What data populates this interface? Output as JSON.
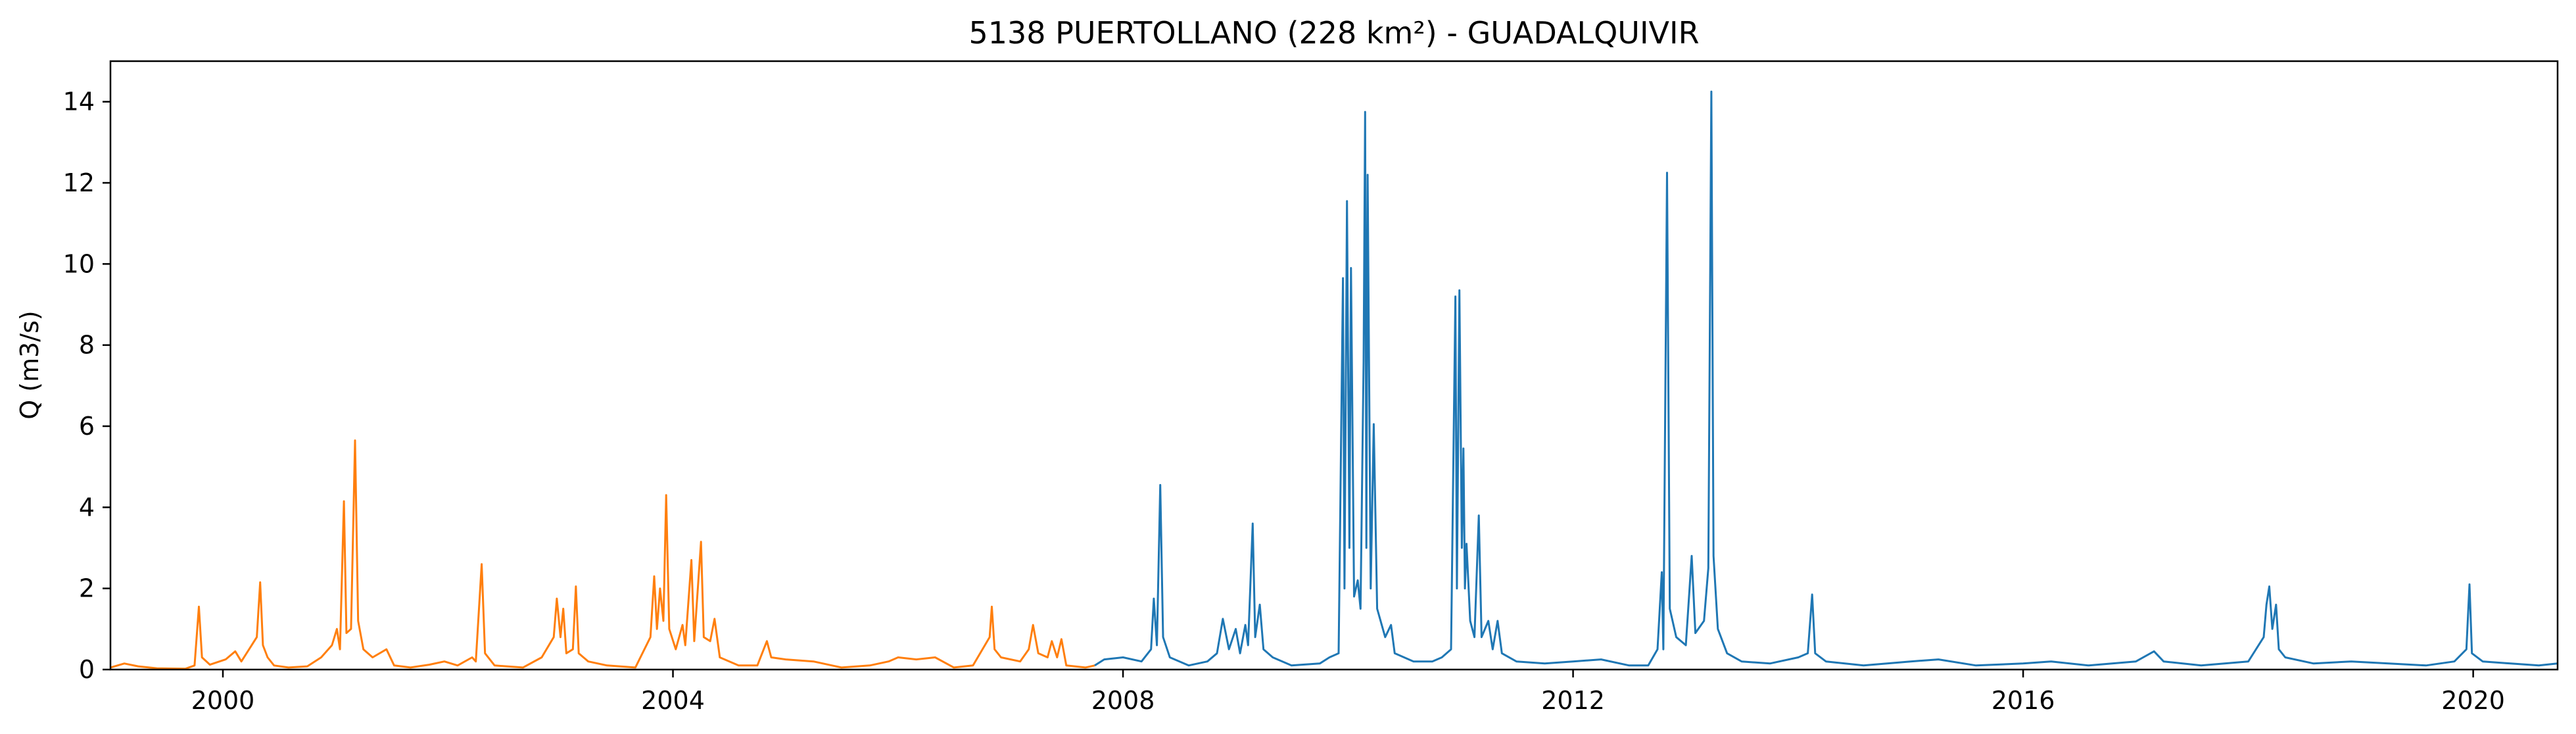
{
  "chart_data": {
    "type": "line",
    "title": "5138 PUERTOLLANO (228 km²) - GUADALQUIVIR",
    "xlabel": "",
    "ylabel": "Q (m3/s)",
    "x_axis": "date",
    "xlim": [
      "1999-01-01",
      "2020-10-01"
    ],
    "ylim": [
      0,
      15
    ],
    "x_ticks": [
      {
        "value": "2000-01-01",
        "label": "2000"
      },
      {
        "value": "2004-01-01",
        "label": "2004"
      },
      {
        "value": "2008-01-01",
        "label": "2008"
      },
      {
        "value": "2012-01-01",
        "label": "2012"
      },
      {
        "value": "2016-01-01",
        "label": "2016"
      },
      {
        "value": "2020-01-01",
        "label": "2020"
      }
    ],
    "y_ticks": [
      0,
      2,
      4,
      6,
      8,
      10,
      12,
      14
    ],
    "grid": false,
    "legend": "none",
    "series": [
      {
        "color": "#ff7f0e",
        "points": [
          [
            "1999-01-01",
            0.05
          ],
          [
            "1999-02-15",
            0.15
          ],
          [
            "1999-04-01",
            0.08
          ],
          [
            "1999-06-01",
            0.03
          ],
          [
            "1999-09-01",
            0.02
          ],
          [
            "1999-10-01",
            0.1
          ],
          [
            "1999-10-15",
            1.55
          ],
          [
            "1999-10-25",
            0.3
          ],
          [
            "1999-11-20",
            0.12
          ],
          [
            "2000-01-10",
            0.25
          ],
          [
            "2000-02-10",
            0.45
          ],
          [
            "2000-03-01",
            0.2
          ],
          [
            "2000-04-20",
            0.8
          ],
          [
            "2000-05-01",
            2.15
          ],
          [
            "2000-05-10",
            0.6
          ],
          [
            "2000-05-25",
            0.3
          ],
          [
            "2000-06-15",
            0.1
          ],
          [
            "2000-08-01",
            0.05
          ],
          [
            "2000-10-01",
            0.08
          ],
          [
            "2000-11-15",
            0.3
          ],
          [
            "2000-12-20",
            0.6
          ],
          [
            "2001-01-05",
            1.0
          ],
          [
            "2001-01-15",
            0.5
          ],
          [
            "2001-01-28",
            4.15
          ],
          [
            "2001-02-05",
            0.9
          ],
          [
            "2001-02-20",
            1.0
          ],
          [
            "2001-03-05",
            5.65
          ],
          [
            "2001-03-15",
            1.2
          ],
          [
            "2001-04-01",
            0.5
          ],
          [
            "2001-05-01",
            0.3
          ],
          [
            "2001-06-15",
            0.5
          ],
          [
            "2001-07-10",
            0.1
          ],
          [
            "2001-09-01",
            0.05
          ],
          [
            "2001-11-01",
            0.12
          ],
          [
            "2001-12-20",
            0.2
          ],
          [
            "2002-02-01",
            0.1
          ],
          [
            "2002-03-20",
            0.3
          ],
          [
            "2002-04-01",
            0.2
          ],
          [
            "2002-04-20",
            2.6
          ],
          [
            "2002-05-01",
            0.4
          ],
          [
            "2002-06-01",
            0.1
          ],
          [
            "2002-09-01",
            0.05
          ],
          [
            "2002-11-01",
            0.3
          ],
          [
            "2002-12-10",
            0.8
          ],
          [
            "2002-12-20",
            1.75
          ],
          [
            "2003-01-01",
            0.8
          ],
          [
            "2003-01-10",
            1.5
          ],
          [
            "2003-01-20",
            0.4
          ],
          [
            "2003-02-10",
            0.5
          ],
          [
            "2003-02-20",
            2.05
          ],
          [
            "2003-03-01",
            0.4
          ],
          [
            "2003-04-01",
            0.2
          ],
          [
            "2003-06-01",
            0.1
          ],
          [
            "2003-09-01",
            0.05
          ],
          [
            "2003-10-20",
            0.8
          ],
          [
            "2003-11-01",
            2.3
          ],
          [
            "2003-11-10",
            1.0
          ],
          [
            "2003-11-20",
            2.0
          ],
          [
            "2003-12-01",
            1.2
          ],
          [
            "2003-12-10",
            4.3
          ],
          [
            "2003-12-20",
            1.0
          ],
          [
            "2004-01-10",
            0.5
          ],
          [
            "2004-02-01",
            1.1
          ],
          [
            "2004-02-10",
            0.6
          ],
          [
            "2004-03-01",
            2.7
          ],
          [
            "2004-03-10",
            0.7
          ],
          [
            "2004-04-01",
            3.15
          ],
          [
            "2004-04-10",
            0.8
          ],
          [
            "2004-05-01",
            0.7
          ],
          [
            "2004-05-15",
            1.25
          ],
          [
            "2004-06-01",
            0.3
          ],
          [
            "2004-08-01",
            0.1
          ],
          [
            "2004-10-01",
            0.1
          ],
          [
            "2004-11-01",
            0.7
          ],
          [
            "2004-11-15",
            0.3
          ],
          [
            "2005-01-01",
            0.25
          ],
          [
            "2005-04-01",
            0.2
          ],
          [
            "2005-07-01",
            0.05
          ],
          [
            "2005-10-01",
            0.1
          ],
          [
            "2005-12-01",
            0.2
          ],
          [
            "2006-01-01",
            0.3
          ],
          [
            "2006-03-01",
            0.25
          ],
          [
            "2006-05-01",
            0.3
          ],
          [
            "2006-07-01",
            0.05
          ],
          [
            "2006-09-01",
            0.1
          ],
          [
            "2006-10-25",
            0.8
          ],
          [
            "2006-11-01",
            1.55
          ],
          [
            "2006-11-10",
            0.5
          ],
          [
            "2006-12-01",
            0.3
          ],
          [
            "2007-02-01",
            0.2
          ],
          [
            "2007-03-01",
            0.5
          ],
          [
            "2007-03-15",
            1.1
          ],
          [
            "2007-04-01",
            0.4
          ],
          [
            "2007-05-01",
            0.3
          ],
          [
            "2007-05-15",
            0.7
          ],
          [
            "2007-06-01",
            0.3
          ],
          [
            "2007-06-15",
            0.75
          ],
          [
            "2007-07-01",
            0.1
          ],
          [
            "2007-09-01",
            0.05
          ],
          [
            "2007-10-01",
            0.1
          ]
        ]
      },
      {
        "color": "#1f77b4",
        "points": [
          [
            "2007-10-01",
            0.1
          ],
          [
            "2007-11-01",
            0.25
          ],
          [
            "2008-01-01",
            0.3
          ],
          [
            "2008-03-01",
            0.2
          ],
          [
            "2008-04-01",
            0.5
          ],
          [
            "2008-04-10",
            1.75
          ],
          [
            "2008-04-20",
            0.6
          ],
          [
            "2008-05-01",
            4.55
          ],
          [
            "2008-05-10",
            0.8
          ],
          [
            "2008-06-01",
            0.3
          ],
          [
            "2008-08-01",
            0.1
          ],
          [
            "2008-10-01",
            0.2
          ],
          [
            "2008-11-01",
            0.4
          ],
          [
            "2008-11-20",
            1.25
          ],
          [
            "2008-12-10",
            0.5
          ],
          [
            "2009-01-01",
            1.0
          ],
          [
            "2009-01-15",
            0.4
          ],
          [
            "2009-02-01",
            1.1
          ],
          [
            "2009-02-10",
            0.6
          ],
          [
            "2009-02-25",
            3.6
          ],
          [
            "2009-03-05",
            0.8
          ],
          [
            "2009-03-20",
            1.6
          ],
          [
            "2009-04-01",
            0.5
          ],
          [
            "2009-05-01",
            0.3
          ],
          [
            "2009-07-01",
            0.1
          ],
          [
            "2009-10-01",
            0.15
          ],
          [
            "2009-11-01",
            0.3
          ],
          [
            "2009-12-01",
            0.4
          ],
          [
            "2009-12-15",
            9.65
          ],
          [
            "2009-12-20",
            2.0
          ],
          [
            "2009-12-28",
            11.55
          ],
          [
            "2010-01-05",
            3.0
          ],
          [
            "2010-01-10",
            9.9
          ],
          [
            "2010-01-20",
            1.8
          ],
          [
            "2010-02-01",
            2.2
          ],
          [
            "2010-02-10",
            1.5
          ],
          [
            "2010-02-20",
            7.6
          ],
          [
            "2010-02-25",
            13.75
          ],
          [
            "2010-03-01",
            3.0
          ],
          [
            "2010-03-05",
            12.2
          ],
          [
            "2010-03-15",
            2.0
          ],
          [
            "2010-03-25",
            6.05
          ],
          [
            "2010-04-05",
            1.5
          ],
          [
            "2010-05-01",
            0.8
          ],
          [
            "2010-05-20",
            1.1
          ],
          [
            "2010-06-01",
            0.4
          ],
          [
            "2010-08-01",
            0.2
          ],
          [
            "2010-10-01",
            0.2
          ],
          [
            "2010-11-01",
            0.3
          ],
          [
            "2010-12-01",
            0.5
          ],
          [
            "2010-12-15",
            9.2
          ],
          [
            "2010-12-20",
            2.0
          ],
          [
            "2010-12-28",
            9.35
          ],
          [
            "2011-01-05",
            3.0
          ],
          [
            "2011-01-10",
            5.45
          ],
          [
            "2011-01-15",
            2.0
          ],
          [
            "2011-01-20",
            3.1
          ],
          [
            "2011-02-01",
            1.2
          ],
          [
            "2011-02-15",
            0.8
          ],
          [
            "2011-03-01",
            3.8
          ],
          [
            "2011-03-10",
            0.8
          ],
          [
            "2011-04-01",
            1.2
          ],
          [
            "2011-04-15",
            0.5
          ],
          [
            "2011-05-01",
            1.2
          ],
          [
            "2011-05-15",
            0.4
          ],
          [
            "2011-07-01",
            0.2
          ],
          [
            "2011-10-01",
            0.15
          ],
          [
            "2012-01-01",
            0.2
          ],
          [
            "2012-04-01",
            0.25
          ],
          [
            "2012-07-01",
            0.1
          ],
          [
            "2012-09-01",
            0.1
          ],
          [
            "2012-10-01",
            0.5
          ],
          [
            "2012-10-15",
            2.4
          ],
          [
            "2012-10-20",
            0.5
          ],
          [
            "2012-11-01",
            12.25
          ],
          [
            "2012-11-10",
            1.5
          ],
          [
            "2012-12-01",
            0.8
          ],
          [
            "2013-01-01",
            0.6
          ],
          [
            "2013-01-20",
            2.8
          ],
          [
            "2013-02-01",
            0.9
          ],
          [
            "2013-03-01",
            1.2
          ],
          [
            "2013-03-15",
            2.5
          ],
          [
            "2013-03-25",
            14.25
          ],
          [
            "2013-04-01",
            2.8
          ],
          [
            "2013-04-15",
            1.0
          ],
          [
            "2013-05-15",
            0.4
          ],
          [
            "2013-07-01",
            0.2
          ],
          [
            "2013-10-01",
            0.15
          ],
          [
            "2014-01-01",
            0.3
          ],
          [
            "2014-02-01",
            0.4
          ],
          [
            "2014-02-15",
            1.85
          ],
          [
            "2014-02-25",
            0.4
          ],
          [
            "2014-04-01",
            0.2
          ],
          [
            "2014-08-01",
            0.1
          ],
          [
            "2015-01-01",
            0.2
          ],
          [
            "2015-04-01",
            0.25
          ],
          [
            "2015-08-01",
            0.1
          ],
          [
            "2016-01-01",
            0.15
          ],
          [
            "2016-04-01",
            0.2
          ],
          [
            "2016-08-01",
            0.1
          ],
          [
            "2017-01-01",
            0.2
          ],
          [
            "2017-03-01",
            0.45
          ],
          [
            "2017-04-01",
            0.2
          ],
          [
            "2017-08-01",
            0.1
          ],
          [
            "2018-01-01",
            0.2
          ],
          [
            "2018-02-20",
            0.8
          ],
          [
            "2018-03-01",
            1.6
          ],
          [
            "2018-03-10",
            2.05
          ],
          [
            "2018-03-20",
            1.0
          ],
          [
            "2018-04-01",
            1.6
          ],
          [
            "2018-04-10",
            0.5
          ],
          [
            "2018-05-01",
            0.3
          ],
          [
            "2018-08-01",
            0.15
          ],
          [
            "2018-12-01",
            0.2
          ],
          [
            "2019-04-01",
            0.15
          ],
          [
            "2019-08-01",
            0.1
          ],
          [
            "2019-11-01",
            0.2
          ],
          [
            "2019-12-10",
            0.5
          ],
          [
            "2019-12-20",
            2.1
          ],
          [
            "2019-12-28",
            0.4
          ],
          [
            "2020-02-01",
            0.2
          ],
          [
            "2020-05-01",
            0.15
          ],
          [
            "2020-08-01",
            0.1
          ],
          [
            "2020-10-01",
            0.15
          ]
        ]
      }
    ]
  }
}
